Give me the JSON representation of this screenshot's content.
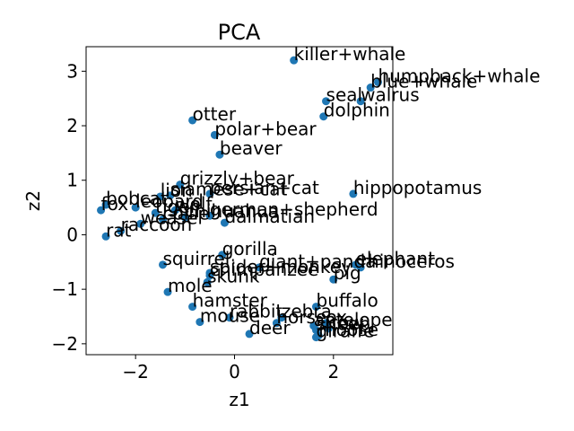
{
  "chart_data": {
    "type": "scatter",
    "title": "PCA",
    "xlabel": "z1",
    "ylabel": "z2",
    "xlim": [
      -3.0,
      3.2
    ],
    "ylim": [
      -2.2,
      3.45
    ],
    "xticks": [
      -2,
      0,
      2
    ],
    "yticks": [
      -2,
      -1,
      0,
      1,
      2,
      3
    ],
    "xtick_labels": [
      "−2",
      "0",
      "2"
    ],
    "ytick_labels": [
      "−2",
      "−1",
      "0",
      "1",
      "2",
      "3"
    ],
    "grid": false,
    "marker_color": "#1f77b4",
    "points": [
      {
        "label": "killer+whale",
        "x": 1.2,
        "y": 3.2
      },
      {
        "label": "humpback+whale",
        "x": 2.9,
        "y": 2.8
      },
      {
        "label": "blue+whale",
        "x": 2.75,
        "y": 2.7
      },
      {
        "label": "seal",
        "x": 1.85,
        "y": 2.45
      },
      {
        "label": "walrus",
        "x": 2.55,
        "y": 2.45
      },
      {
        "label": "dolphin",
        "x": 1.8,
        "y": 2.17
      },
      {
        "label": "otter",
        "x": -0.85,
        "y": 2.1
      },
      {
        "label": "polar+bear",
        "x": -0.4,
        "y": 1.83
      },
      {
        "label": "beaver",
        "x": -0.3,
        "y": 1.47
      },
      {
        "label": "grizzly+bear",
        "x": -1.1,
        "y": 0.92
      },
      {
        "label": "hippopotamus",
        "x": 2.4,
        "y": 0.75
      },
      {
        "label": "persian+cat",
        "x": -0.5,
        "y": 0.75
      },
      {
        "label": "siamese+cat",
        "x": -1.3,
        "y": 0.72
      },
      {
        "label": "lion",
        "x": -1.5,
        "y": 0.7
      },
      {
        "label": "bobcat",
        "x": -2.6,
        "y": 0.55
      },
      {
        "label": "leopard",
        "x": -2.0,
        "y": 0.5
      },
      {
        "label": "fox",
        "x": -2.7,
        "y": 0.45
      },
      {
        "label": "tiger",
        "x": -1.6,
        "y": 0.4
      },
      {
        "label": "wolf",
        "x": -1.2,
        "y": 0.45
      },
      {
        "label": "chihuahua",
        "x": -1.0,
        "y": 0.32
      },
      {
        "label": "german+shepherd",
        "x": -0.5,
        "y": 0.35
      },
      {
        "label": "collie",
        "x": -1.45,
        "y": 0.28
      },
      {
        "label": "dalmatian",
        "x": -0.2,
        "y": 0.22
      },
      {
        "label": "weasel",
        "x": -1.9,
        "y": 0.2
      },
      {
        "label": "raccoon",
        "x": -2.3,
        "y": 0.07
      },
      {
        "label": "rat",
        "x": -2.6,
        "y": -0.03
      },
      {
        "label": "gorilla",
        "x": -0.25,
        "y": -0.37
      },
      {
        "label": "squirrel",
        "x": -1.45,
        "y": -0.55
      },
      {
        "label": "elephant",
        "x": 2.45,
        "y": -0.55
      },
      {
        "label": "rhinoceros",
        "x": 2.55,
        "y": -0.6
      },
      {
        "label": "giant+panda",
        "x": 0.5,
        "y": -0.6
      },
      {
        "label": "spider+monkey",
        "x": -0.5,
        "y": -0.7
      },
      {
        "label": "chimpanzee",
        "x": -0.5,
        "y": -0.75
      },
      {
        "label": "pig",
        "x": 2.0,
        "y": -0.82
      },
      {
        "label": "skunk",
        "x": -0.55,
        "y": -0.87
      },
      {
        "label": "mole",
        "x": -1.35,
        "y": -1.05
      },
      {
        "label": "hamster",
        "x": -0.85,
        "y": -1.32
      },
      {
        "label": "buffalo",
        "x": 1.65,
        "y": -1.32
      },
      {
        "label": "rabbit",
        "x": -0.1,
        "y": -1.52
      },
      {
        "label": "zebra",
        "x": 0.95,
        "y": -1.52
      },
      {
        "label": "mouse",
        "x": -0.7,
        "y": -1.6
      },
      {
        "label": "horse",
        "x": 0.85,
        "y": -1.62
      },
      {
        "label": "ox",
        "x": 1.85,
        "y": -1.62
      },
      {
        "label": "antelope",
        "x": 1.6,
        "y": -1.67
      },
      {
        "label": "sheep",
        "x": 1.65,
        "y": -1.75
      },
      {
        "label": "cow",
        "x": 1.9,
        "y": -1.72
      },
      {
        "label": "deer",
        "x": 0.3,
        "y": -1.82
      },
      {
        "label": "moose",
        "x": 1.7,
        "y": -1.85
      },
      {
        "label": "giraffe",
        "x": 1.65,
        "y": -1.88
      }
    ]
  }
}
